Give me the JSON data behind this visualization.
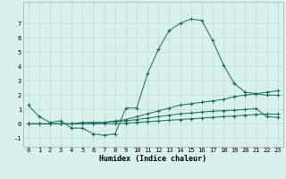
{
  "xlabel": "Humidex (Indice chaleur)",
  "background_color": "#d8f0ee",
  "grid_color": "#b8dbd8",
  "line_color": "#1a6b5a",
  "xlim": [
    -0.5,
    23.5
  ],
  "ylim": [
    -1.6,
    8.5
  ],
  "xticks": [
    0,
    1,
    2,
    3,
    4,
    5,
    6,
    7,
    8,
    9,
    10,
    11,
    12,
    13,
    14,
    15,
    16,
    17,
    18,
    19,
    20,
    21,
    22,
    23
  ],
  "yticks": [
    -1,
    0,
    1,
    2,
    3,
    4,
    5,
    6,
    7
  ],
  "line1_x": [
    0,
    1,
    2,
    3,
    4,
    5,
    6,
    7,
    8,
    9,
    10,
    11,
    12,
    13,
    14,
    15,
    16,
    17,
    18,
    19,
    20,
    21,
    22,
    23
  ],
  "line1_y": [
    1.3,
    0.5,
    0.1,
    0.2,
    -0.3,
    -0.3,
    -0.7,
    -0.8,
    -0.7,
    1.1,
    1.1,
    3.5,
    5.2,
    6.5,
    7.0,
    7.3,
    7.2,
    5.8,
    4.1,
    2.8,
    2.2,
    2.1,
    2.0,
    2.0
  ],
  "line2_x": [
    0,
    1,
    2,
    3,
    4,
    5,
    6,
    7,
    8,
    9,
    10,
    11,
    12,
    13,
    14,
    15,
    16,
    17,
    18,
    19,
    20,
    21,
    22,
    23
  ],
  "line2_y": [
    0.0,
    0.0,
    0.0,
    0.0,
    0.0,
    0.1,
    0.1,
    0.1,
    0.2,
    0.3,
    0.5,
    0.7,
    0.9,
    1.1,
    1.3,
    1.4,
    1.5,
    1.6,
    1.7,
    1.9,
    2.0,
    2.1,
    2.2,
    2.3
  ],
  "line3_x": [
    0,
    1,
    2,
    3,
    4,
    5,
    6,
    7,
    8,
    9,
    10,
    11,
    12,
    13,
    14,
    15,
    16,
    17,
    18,
    19,
    20,
    21,
    22,
    23
  ],
  "line3_y": [
    0.0,
    0.0,
    0.0,
    0.0,
    0.0,
    0.0,
    0.05,
    0.1,
    0.15,
    0.2,
    0.3,
    0.4,
    0.5,
    0.6,
    0.7,
    0.75,
    0.82,
    0.88,
    0.92,
    0.95,
    1.0,
    1.05,
    0.5,
    0.45
  ],
  "line4_x": [
    0,
    1,
    2,
    3,
    4,
    5,
    6,
    7,
    8,
    9,
    10,
    11,
    12,
    13,
    14,
    15,
    16,
    17,
    18,
    19,
    20,
    21,
    22,
    23
  ],
  "line4_y": [
    0.0,
    0.0,
    0.0,
    0.0,
    0.0,
    0.0,
    0.0,
    0.0,
    0.0,
    0.05,
    0.1,
    0.15,
    0.2,
    0.25,
    0.3,
    0.35,
    0.4,
    0.45,
    0.5,
    0.55,
    0.6,
    0.65,
    0.68,
    0.68
  ],
  "xlabel_fontsize": 6,
  "tick_fontsize": 5,
  "marker_size": 3,
  "linewidth": 0.7
}
